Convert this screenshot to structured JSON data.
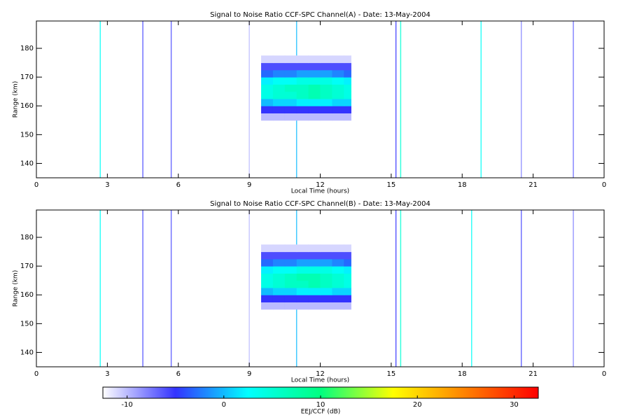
{
  "chart_data": [
    {
      "type": "heatmap",
      "title": "Signal to Noise Ratio CCF-SPC Channel(A) - Date: 13-May-2004",
      "xlabel": "Local Time (hours)",
      "ylabel": "Range (km)",
      "xlim": [
        0,
        24
      ],
      "xticks": [
        0,
        3,
        6,
        9,
        12,
        15,
        18,
        21,
        {
          "value": 24,
          "label": "0"
        }
      ],
      "ylim": [
        135,
        189.5
      ],
      "yticks": [
        140,
        150,
        160,
        170,
        180
      ],
      "x": [
        9.5,
        10,
        10.5,
        11,
        11.5,
        12,
        12.5,
        13,
        13.3
      ],
      "y": [
        155,
        157.5,
        160,
        162.5,
        165,
        167.5,
        170,
        172.5,
        175,
        177.5
      ],
      "values": [
        [
          -10,
          -10,
          -10,
          -10,
          -10,
          -10,
          -10,
          -10
        ],
        [
          -5,
          -5,
          -5,
          -5,
          -5,
          -5,
          -5,
          -5
        ],
        [
          0,
          1,
          1,
          2,
          2,
          2,
          1,
          1
        ],
        [
          4,
          5,
          5,
          6,
          7,
          6,
          5,
          4
        ],
        [
          4,
          5,
          6,
          6,
          7,
          6,
          5,
          4
        ],
        [
          2,
          3,
          3,
          4,
          4,
          4,
          3,
          2
        ],
        [
          -3,
          -2,
          -2,
          -1,
          -1,
          -1,
          -2,
          -3
        ],
        [
          -6,
          -6,
          -6,
          -6,
          -6,
          -6,
          -6,
          -6
        ],
        [
          -11,
          -11,
          -11,
          -11,
          -11,
          -11,
          -11,
          -11
        ]
      ],
      "streaks": {
        "x": [
          2.7,
          4.5,
          5.7,
          9.0,
          11.0,
          15.2,
          15.4,
          18.8,
          20.5,
          22.7
        ],
        "values": [
          3,
          -6,
          -6,
          -10,
          0,
          -5,
          5,
          3,
          -8,
          -7
        ]
      }
    },
    {
      "type": "heatmap",
      "title": "Signal to Noise Ratio CCF-SPC Channel(B) - Date: 13-May-2004",
      "xlabel": "Local Time (hours)",
      "ylabel": "Range (km)",
      "xlim": [
        0,
        24
      ],
      "xticks": [
        0,
        3,
        6,
        9,
        12,
        15,
        18,
        21,
        {
          "value": 24,
          "label": "0"
        }
      ],
      "ylim": [
        135,
        189.5
      ],
      "yticks": [
        140,
        150,
        160,
        170,
        180
      ],
      "x": [
        9.5,
        10,
        10.5,
        11,
        11.5,
        12,
        12.5,
        13,
        13.3
      ],
      "y": [
        155,
        157.5,
        160,
        162.5,
        165,
        167.5,
        170,
        172.5,
        175,
        177.5
      ],
      "values": [
        [
          -10,
          -10,
          -10,
          -10,
          -10,
          -10,
          -10,
          -10
        ],
        [
          -5,
          -5,
          -5,
          -5,
          -5,
          -5,
          -5,
          -5
        ],
        [
          0,
          1,
          1,
          2,
          2,
          2,
          1,
          1
        ],
        [
          4,
          5,
          6,
          6,
          7,
          6,
          5,
          4
        ],
        [
          4,
          5,
          6,
          7,
          7,
          6,
          5,
          4
        ],
        [
          2,
          3,
          3,
          4,
          4,
          4,
          3,
          2
        ],
        [
          -3,
          -2,
          -2,
          -1,
          -1,
          -1,
          -2,
          -3
        ],
        [
          -6,
          -6,
          -6,
          -6,
          -6,
          -6,
          -6,
          -6
        ],
        [
          -11,
          -11,
          -11,
          -11,
          -11,
          -11,
          -11,
          -11
        ]
      ],
      "streaks": {
        "x": [
          2.7,
          4.5,
          5.7,
          9.0,
          11.0,
          15.2,
          15.4,
          18.4,
          20.5,
          22.7
        ],
        "values": [
          3,
          -6,
          -6,
          -10,
          0,
          -5,
          5,
          3,
          -6,
          -8
        ]
      }
    },
    {
      "type": "colorbar",
      "label": "EEJ/CCF (dB)",
      "clim": [
        -12.5,
        32.5
      ],
      "cticks": [
        -10,
        0,
        10,
        20,
        30
      ],
      "colors": [
        "#ffffff",
        "#3333ff",
        "#00ffff",
        "#00ff80",
        "#ffff00",
        "#ff8000",
        "#ff0000"
      ]
    }
  ]
}
